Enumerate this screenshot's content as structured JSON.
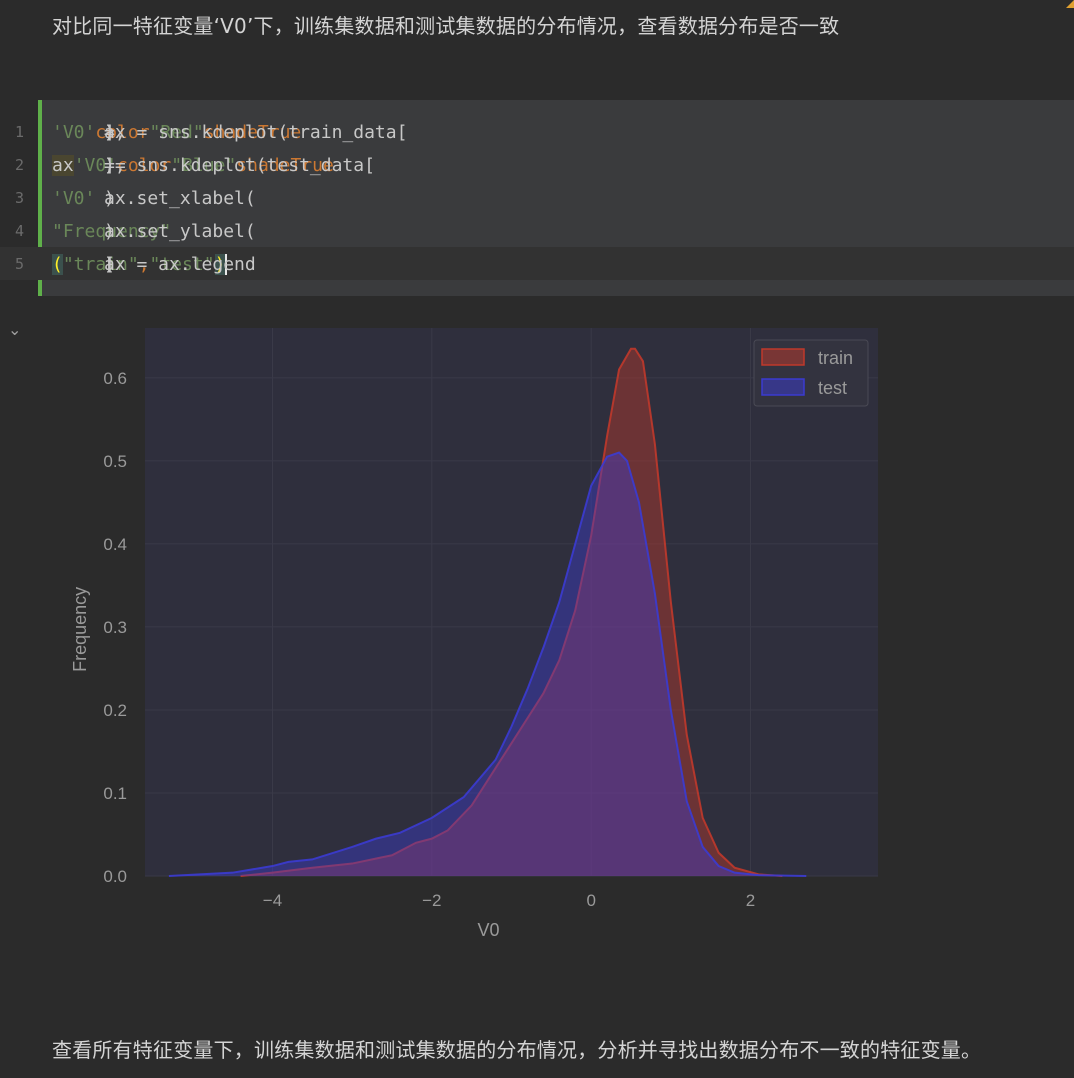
{
  "markdown": {
    "top": "对比同一特征变量‘V0’下，训练集数据和测试集数据的分布情况，查看数据分布是否一致",
    "bottom": "查看所有特征变量下，训练集数据和测试集数据的分布情况，分析并寻找出数据分布不一致的特征变量。"
  },
  "code_cell": {
    "lines": [
      {
        "n": "1",
        "parts": [
          {
            "t": "ax = sns.kdeplot(train_data[",
            "c": "code"
          },
          {
            "t": "'V0'",
            "c": "str"
          },
          {
            "t": "], ",
            "c": "code"
          },
          {
            "t": "color",
            "c": "kw"
          },
          {
            "t": "=",
            "c": "code"
          },
          {
            "t": "\"Red\"",
            "c": "str"
          },
          {
            "t": ", ",
            "c": "code"
          },
          {
            "t": "shade",
            "c": "kw"
          },
          {
            "t": "=",
            "c": "code"
          },
          {
            "t": "True",
            "c": "bool"
          },
          {
            "t": ")",
            "c": "code"
          }
        ]
      },
      {
        "n": "2",
        "parts": [
          {
            "t": "ax",
            "c": "hl-ax"
          },
          {
            "t": " = sns.kdeplot(test_data[",
            "c": "code"
          },
          {
            "t": "'V0'",
            "c": "str"
          },
          {
            "t": "], ",
            "c": "code"
          },
          {
            "t": "color",
            "c": "kw"
          },
          {
            "t": "=",
            "c": "code"
          },
          {
            "t": "\"Blue\"",
            "c": "str"
          },
          {
            "t": ", ",
            "c": "code"
          },
          {
            "t": "shade",
            "c": "kw"
          },
          {
            "t": "=",
            "c": "code"
          },
          {
            "t": "True",
            "c": "bool"
          },
          {
            "t": ")",
            "c": "code"
          }
        ]
      },
      {
        "n": "3",
        "parts": [
          {
            "t": "ax.set_xlabel(",
            "c": "code"
          },
          {
            "t": "'V0'",
            "c": "str"
          },
          {
            "t": ")",
            "c": "code"
          }
        ]
      },
      {
        "n": "4",
        "parts": [
          {
            "t": "ax.set_ylabel(",
            "c": "code"
          },
          {
            "t": "\"Frequency\"",
            "c": "str"
          },
          {
            "t": ")",
            "c": "code"
          }
        ]
      },
      {
        "n": "5",
        "parts": [
          {
            "t": "ax = ax.legend",
            "c": "code"
          },
          {
            "t": "(",
            "c": "bracket-hl"
          },
          {
            "t": "[",
            "c": "code"
          },
          {
            "t": "\"train\"",
            "c": "str"
          },
          {
            "t": ",",
            "c": "kw"
          },
          {
            "t": "\"test\"",
            "c": "str"
          },
          {
            "t": "]",
            "c": "code"
          },
          {
            "t": ")",
            "c": "bracket-hl caret"
          }
        ]
      }
    ]
  },
  "collapse_icon": "chevron-down-icon",
  "chart_data": {
    "type": "area",
    "xlabel": "V0",
    "ylabel": "Frequency",
    "xlim": [
      -5.6,
      3.6
    ],
    "ylim": [
      0,
      0.66
    ],
    "xticks": [
      -4,
      -2,
      0,
      2
    ],
    "xtick_labels": [
      "−4",
      "−2",
      "0",
      "2"
    ],
    "yticks": [
      0.0,
      0.1,
      0.2,
      0.3,
      0.4,
      0.5,
      0.6
    ],
    "ytick_labels": [
      "0.0",
      "0.1",
      "0.2",
      "0.3",
      "0.4",
      "0.5",
      "0.6"
    ],
    "grid": true,
    "legend_position": "top-right",
    "series": [
      {
        "name": "train",
        "color": "#c0392b",
        "x": [
          -4.4,
          -4.0,
          -3.5,
          -3.0,
          -2.5,
          -2.2,
          -2.0,
          -1.8,
          -1.5,
          -1.2,
          -1.0,
          -0.8,
          -0.6,
          -0.4,
          -0.2,
          0.0,
          0.2,
          0.35,
          0.5,
          0.55,
          0.65,
          0.8,
          1.0,
          1.2,
          1.4,
          1.6,
          1.8,
          2.1,
          2.4
        ],
        "y": [
          0.0,
          0.004,
          0.01,
          0.015,
          0.025,
          0.04,
          0.045,
          0.055,
          0.085,
          0.13,
          0.16,
          0.19,
          0.22,
          0.26,
          0.32,
          0.41,
          0.53,
          0.61,
          0.635,
          0.635,
          0.62,
          0.52,
          0.33,
          0.17,
          0.07,
          0.028,
          0.01,
          0.002,
          0.0
        ]
      },
      {
        "name": "test",
        "color": "#3b3bd1",
        "x": [
          -5.3,
          -4.5,
          -4.0,
          -3.8,
          -3.5,
          -3.0,
          -2.7,
          -2.4,
          -2.0,
          -1.6,
          -1.2,
          -1.0,
          -0.8,
          -0.6,
          -0.4,
          -0.2,
          0.0,
          0.2,
          0.35,
          0.45,
          0.6,
          0.8,
          1.0,
          1.2,
          1.4,
          1.6,
          1.8,
          2.1,
          2.7
        ],
        "y": [
          0.0,
          0.004,
          0.012,
          0.017,
          0.02,
          0.035,
          0.045,
          0.052,
          0.07,
          0.095,
          0.14,
          0.18,
          0.225,
          0.275,
          0.33,
          0.4,
          0.47,
          0.505,
          0.51,
          0.5,
          0.45,
          0.34,
          0.2,
          0.09,
          0.035,
          0.012,
          0.004,
          0.001,
          0.0
        ]
      }
    ]
  }
}
